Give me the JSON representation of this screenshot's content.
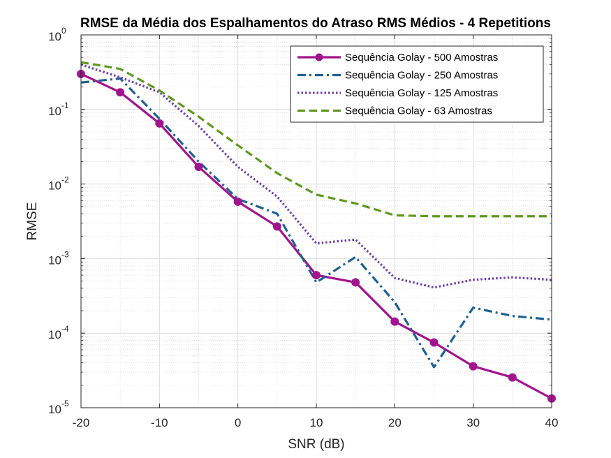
{
  "chart_data": {
    "type": "line",
    "title": "RMSE da Média dos Espalhamentos do Atraso RMS Médios - 4 Repetitions",
    "xlabel": "SNR (dB)",
    "ylabel": "RMSE",
    "xlim": [
      -20,
      40
    ],
    "ylim": [
      1e-05,
      1
    ],
    "yscale": "log",
    "grid": true,
    "minor_grid": true,
    "legend_position": "top-right",
    "x_ticks": [
      -20,
      -10,
      0,
      10,
      20,
      30,
      40
    ],
    "x_tick_labels": [
      "-20",
      "-10",
      "0",
      "10",
      "20",
      "30",
      "40"
    ],
    "y_ticks": [
      1e-05,
      0.0001,
      0.001,
      0.01,
      0.1,
      1
    ],
    "y_tick_labels": [
      {
        "base": "10",
        "exp": "-5"
      },
      {
        "base": "10",
        "exp": "-4"
      },
      {
        "base": "10",
        "exp": "-3"
      },
      {
        "base": "10",
        "exp": "-2"
      },
      {
        "base": "10",
        "exp": "-1"
      },
      {
        "base": "10",
        "exp": "0"
      }
    ],
    "x": [
      -20,
      -15,
      -10,
      -5,
      0,
      5,
      10,
      15,
      20,
      25,
      30,
      35,
      40
    ],
    "series": [
      {
        "name": "Sequência Golay - 500 Amostras",
        "color": "#A2148E",
        "style": "solid-marker",
        "values": [
          0.3,
          0.17,
          0.065,
          0.017,
          0.0058,
          0.0027,
          0.0006,
          0.00048,
          0.000143,
          7.5e-05,
          3.6e-05,
          2.55e-05,
          1.33e-05
        ]
      },
      {
        "name": "Sequência Golay - 250 Amostras",
        "color": "#1E6194",
        "style": "dash-dot",
        "values": [
          0.23,
          0.26,
          0.075,
          0.02,
          0.0063,
          0.004,
          0.00048,
          0.00105,
          0.00026,
          3.5e-05,
          0.00022,
          0.00017,
          0.000152
        ]
      },
      {
        "name": "Sequência Golay - 125 Amostras",
        "color": "#6C3FB0",
        "style": "dotted",
        "values": [
          0.4,
          0.27,
          0.17,
          0.06,
          0.017,
          0.0068,
          0.0016,
          0.0018,
          0.00055,
          0.00041,
          0.00052,
          0.00056,
          0.00052
        ]
      },
      {
        "name": "Sequência Golay - 63 Amostras",
        "color": "#5E9A1E",
        "style": "dashed",
        "values": [
          0.43,
          0.35,
          0.18,
          0.08,
          0.033,
          0.014,
          0.0072,
          0.0055,
          0.0038,
          0.0037,
          0.0037,
          0.0037,
          0.0037
        ]
      }
    ]
  }
}
